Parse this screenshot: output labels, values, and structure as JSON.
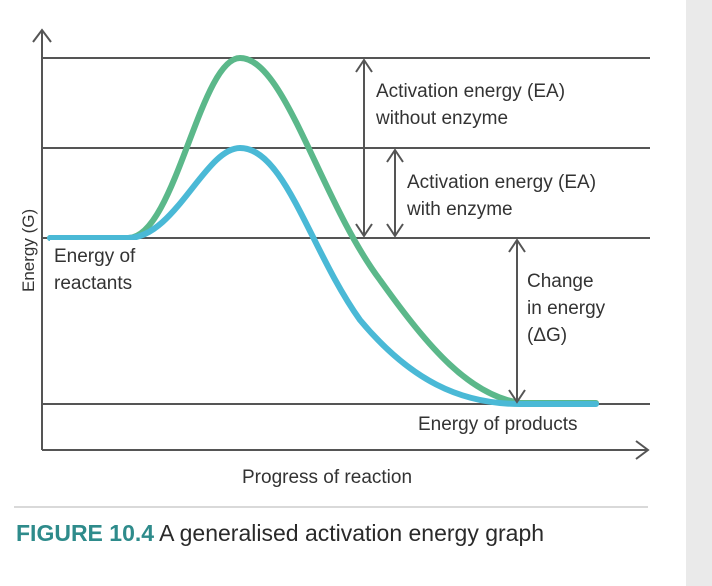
{
  "labels": {
    "ea_without": [
      "Activation energy (EA)",
      "without enzyme"
    ],
    "ea_with": [
      "Activation energy (EA)",
      "with enzyme"
    ],
    "reactants": [
      "Energy of",
      "reactants"
    ],
    "delta_g": [
      "Change",
      "in energy",
      "(ΔG)"
    ],
    "products": "Energy of products",
    "x_axis": "Progress of reaction",
    "y_axis": "Energy (G)"
  },
  "caption": {
    "figure": "FIGURE 10.4",
    "text": " A generalised activation energy graph"
  },
  "colors": {
    "without_enzyme": "#5bb88a",
    "with_enzyme": "#4ab9d6",
    "lines": "#555555"
  }
}
